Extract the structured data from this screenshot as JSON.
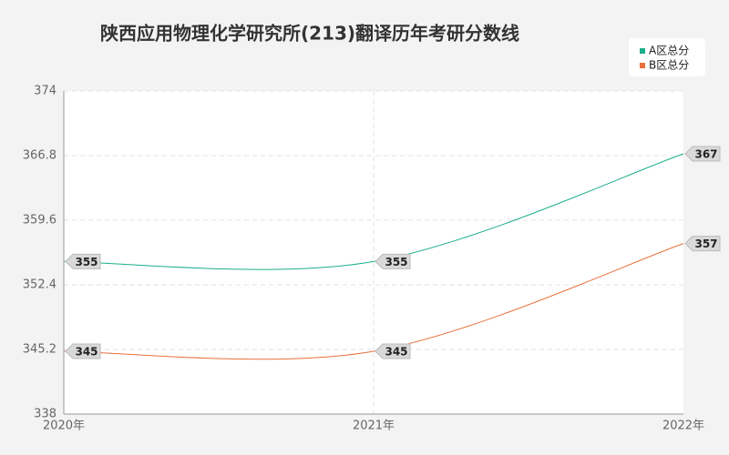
{
  "chart_data": {
    "type": "line",
    "title": "陕西应用物理化学研究所(213)翻译历年考研分数线",
    "categories": [
      "2020年",
      "2021年",
      "2022年"
    ],
    "series": [
      {
        "name": "A区总分",
        "color": "#1aaf8b",
        "values": [
          355,
          355,
          367
        ]
      },
      {
        "name": "B区总分",
        "color": "#e8703a",
        "values": [
          345,
          345,
          357
        ]
      }
    ],
    "ylim": [
      338,
      374
    ],
    "yticks": [
      338,
      345.2,
      352.4,
      359.6,
      366.8,
      374
    ],
    "grid": true,
    "legend": "top-right",
    "smooth": true
  }
}
